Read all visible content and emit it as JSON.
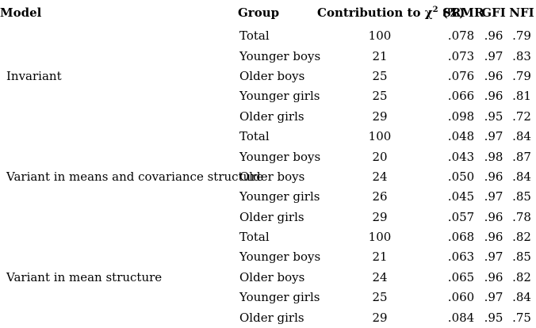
{
  "colors": {
    "background": "#ffffff",
    "text": "#000000"
  },
  "table": {
    "headers": {
      "model": "Model",
      "group": "Group",
      "contribution_prefix": "Contribution to χ",
      "contribution_sup": "2",
      "contribution_suffix": " (%)",
      "srmr": "SRMR",
      "gfi": "GFI",
      "nfi": "NFI"
    },
    "groups": [
      {
        "model": "Invariant",
        "rows": [
          {
            "group": "Total",
            "contribution": "100",
            "srmr": ".078",
            "gfi": ".96",
            "nfi": ".79"
          },
          {
            "group": "Younger boys",
            "contribution": "21",
            "srmr": ".073",
            "gfi": ".97",
            "nfi": ".83"
          },
          {
            "group": "Older boys",
            "contribution": "25",
            "srmr": ".076",
            "gfi": ".96",
            "nfi": ".79"
          },
          {
            "group": "Younger girls",
            "contribution": "25",
            "srmr": ".066",
            "gfi": ".96",
            "nfi": ".81"
          },
          {
            "group": "Older girls",
            "contribution": "29",
            "srmr": ".098",
            "gfi": ".95",
            "nfi": ".72"
          }
        ]
      },
      {
        "model": "Variant in means and covariance structure",
        "rows": [
          {
            "group": "Total",
            "contribution": "100",
            "srmr": ".048",
            "gfi": ".97",
            "nfi": ".84"
          },
          {
            "group": "Younger boys",
            "contribution": "20",
            "srmr": ".043",
            "gfi": ".98",
            "nfi": ".87"
          },
          {
            "group": "Older boys",
            "contribution": "24",
            "srmr": ".050",
            "gfi": ".96",
            "nfi": ".84"
          },
          {
            "group": "Younger girls",
            "contribution": "26",
            "srmr": ".045",
            "gfi": ".97",
            "nfi": ".85"
          },
          {
            "group": "Older girls",
            "contribution": "29",
            "srmr": ".057",
            "gfi": ".96",
            "nfi": ".78"
          }
        ]
      },
      {
        "model": "Variant in mean structure",
        "rows": [
          {
            "group": "Total",
            "contribution": "100",
            "srmr": ".068",
            "gfi": ".96",
            "nfi": ".82"
          },
          {
            "group": "Younger boys",
            "contribution": "21",
            "srmr": ".063",
            "gfi": ".97",
            "nfi": ".85"
          },
          {
            "group": "Older boys",
            "contribution": "24",
            "srmr": ".065",
            "gfi": ".96",
            "nfi": ".82"
          },
          {
            "group": "Younger girls",
            "contribution": "25",
            "srmr": ".060",
            "gfi": ".97",
            "nfi": ".84"
          },
          {
            "group": "Older girls",
            "contribution": "29",
            "srmr": ".084",
            "gfi": ".95",
            "nfi": ".75"
          }
        ]
      }
    ]
  }
}
